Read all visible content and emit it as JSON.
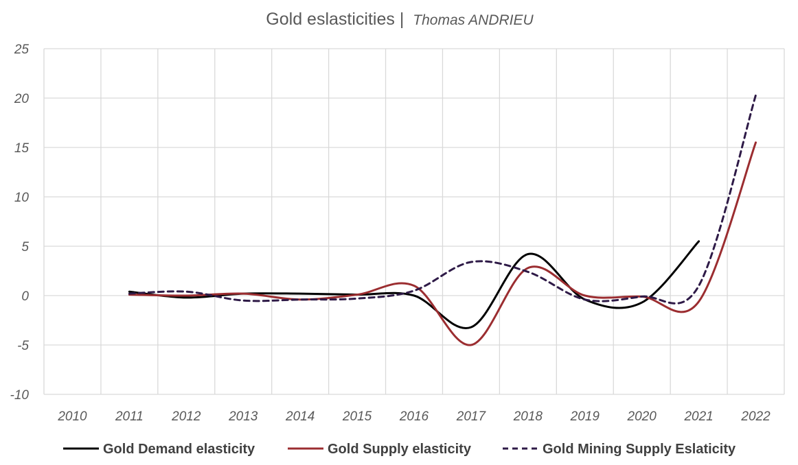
{
  "chart_data": {
    "type": "line",
    "title": "Gold eslasticities | ",
    "subtitle": "Thomas ANDRIEU",
    "xlabel": "",
    "ylabel": "",
    "categories": [
      "2010",
      "2011",
      "2012",
      "2013",
      "2014",
      "2015",
      "2016",
      "2017",
      "2018",
      "2019",
      "2020",
      "2021",
      "2022"
    ],
    "ylim": [
      -10,
      25
    ],
    "yticks": [
      -10,
      -5,
      0,
      5,
      10,
      15,
      20,
      25
    ],
    "grid": true,
    "legend_position": "bottom",
    "series": [
      {
        "name": "Gold Demand elasticity",
        "color": "#000000",
        "dash": "solid",
        "values": [
          null,
          0.4,
          -0.2,
          0.2,
          0.2,
          0.1,
          0.0,
          -3.2,
          4.2,
          -0.4,
          -0.7,
          5.5,
          null
        ]
      },
      {
        "name": "Gold Supply elasticity",
        "color": "#9B2D30",
        "dash": "solid",
        "values": [
          null,
          0.1,
          0.0,
          0.2,
          -0.4,
          0.1,
          1.0,
          -5.0,
          2.8,
          0.0,
          -0.1,
          -0.6,
          15.5
        ]
      },
      {
        "name": "Gold Mining Supply Eslaticity",
        "color": "#2E1A47",
        "dash": "dashed",
        "values": [
          null,
          0.2,
          0.4,
          -0.5,
          -0.4,
          -0.3,
          0.5,
          3.4,
          2.4,
          -0.4,
          -0.1,
          1.0,
          20.3
        ]
      }
    ]
  }
}
